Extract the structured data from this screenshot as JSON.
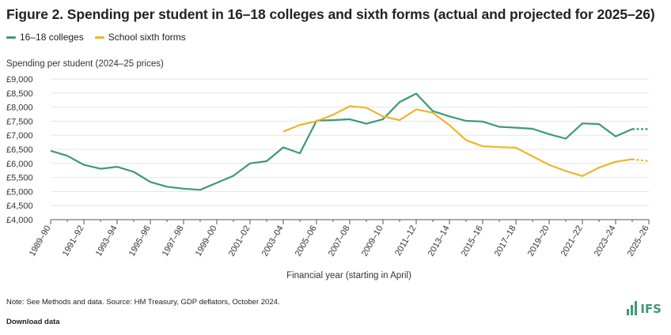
{
  "figure": {
    "title": "Figure 2. Spending per student in 16–18 colleges and sixth forms (actual and projected for 2025–26)",
    "footnote": "Note: See Methods and data. Source: HM Treasury, GDP deflators, October 2024.",
    "download_label": "Download data",
    "logo_text": "IFS"
  },
  "colors": {
    "colleges": "#3d9a74",
    "sixth_forms": "#edb52c",
    "gridline": "#e6e6e6",
    "axis": "#555555"
  },
  "chart_data": {
    "type": "line",
    "title": "Figure 2. Spending per student in 16–18 colleges and sixth forms (actual and projected for 2025–26)",
    "ylabel": "Spending per student (2024–25 prices)",
    "xlabel": "Financial year (starting in April)",
    "ylim": [
      4000,
      9000
    ],
    "yticks": [
      4000,
      4500,
      5000,
      5500,
      6000,
      6500,
      7000,
      7500,
      8000,
      8500,
      9000
    ],
    "ytick_labels": [
      "£4,000",
      "£4,500",
      "£5,000",
      "£5,500",
      "£6,000",
      "£6,500",
      "£7,000",
      "£7,500",
      "£8,000",
      "£8,500",
      "£9,000"
    ],
    "categories": [
      "1989–90",
      "1990–91",
      "1991–92",
      "1992–93",
      "1993–94",
      "1994–95",
      "1995–96",
      "1996–97",
      "1997–98",
      "1998–99",
      "1999–00",
      "2000–01",
      "2001–02",
      "2002–03",
      "2003–04",
      "2004–05",
      "2005–06",
      "2006–07",
      "2007–08",
      "2008–09",
      "2009–10",
      "2010–11",
      "2011–12",
      "2012–13",
      "2013–14",
      "2014–15",
      "2015–16",
      "2016–17",
      "2017–18",
      "2018–19",
      "2019–20",
      "2020–21",
      "2021–22",
      "2022–23",
      "2023–24",
      "2024–25",
      "2025–26"
    ],
    "xtick_labels": [
      "1989–90",
      "1991–92",
      "1993–94",
      "1995–96",
      "1997–98",
      "1999–00",
      "2001–02",
      "2003–04",
      "2005–06",
      "2007–08",
      "2009–10",
      "2011–12",
      "2013–14",
      "2015–16",
      "2017–18",
      "2019–20",
      "2021–22",
      "2023–24",
      "2025–26"
    ],
    "projected_from_index": 35,
    "grid": true,
    "legend_position": "top-left",
    "series": [
      {
        "name": "16–18 colleges",
        "color": "#3d9a74",
        "values": [
          6450,
          6270,
          5950,
          5810,
          5880,
          5700,
          5340,
          5170,
          5100,
          5060,
          5310,
          5560,
          6000,
          6080,
          6570,
          6360,
          7520,
          7540,
          7570,
          7410,
          7570,
          8180,
          8480,
          7860,
          7670,
          7510,
          7490,
          7300,
          7270,
          7230,
          7040,
          6880,
          7420,
          7400,
          6960,
          7220,
          7220
        ]
      },
      {
        "name": "School sixth forms",
        "color": "#edb52c",
        "values": [
          null,
          null,
          null,
          null,
          null,
          null,
          null,
          null,
          null,
          null,
          null,
          null,
          null,
          null,
          7130,
          7370,
          7500,
          7730,
          8030,
          7980,
          7670,
          7540,
          7920,
          7800,
          7360,
          6830,
          6610,
          6580,
          6560,
          6250,
          5950,
          5730,
          5550,
          5850,
          6060,
          6150,
          6080
        ]
      }
    ]
  }
}
